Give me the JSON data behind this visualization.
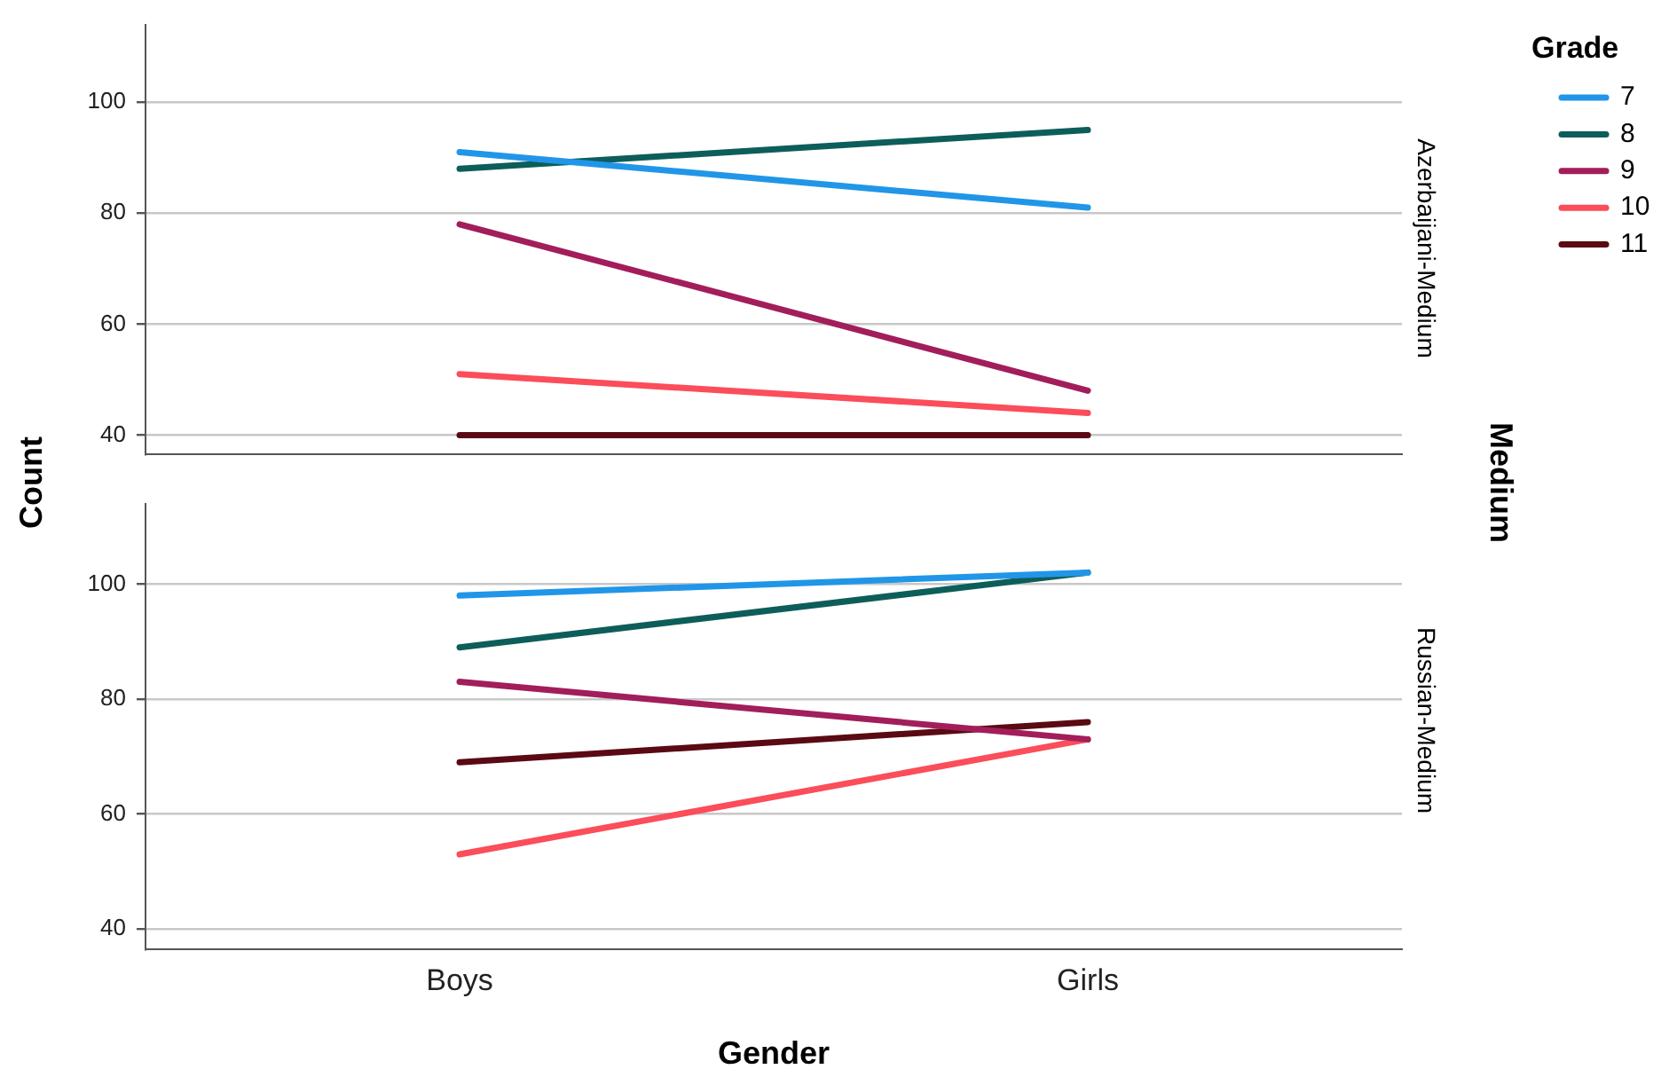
{
  "chart_data": [
    {
      "type": "line",
      "title": "Azerbaijani-Medium",
      "ylabel": "Count",
      "legend_title": "Grade",
      "legend": "top right",
      "grid": "y",
      "tick_labels": "y",
      "annotations": [
        "Medium"
      ],
      "categories": [
        null,
        null
      ],
      "ylim": [
        36.5,
        114
      ],
      "yticks": [
        40,
        60,
        80,
        100
      ],
      "series": [
        {
          "name": "7",
          "color": "#2196e8",
          "values": [
            91,
            81
          ]
        },
        {
          "name": "8",
          "color": "#0d5e5a",
          "values": [
            88,
            95
          ]
        },
        {
          "name": "9",
          "color": "#a21e5a",
          "values": [
            78,
            48
          ]
        },
        {
          "name": "10",
          "color": "#fb4d5a",
          "values": [
            51,
            44
          ]
        },
        {
          "name": "11",
          "color": "#5a0a12",
          "values": [
            40,
            40
          ]
        }
      ]
    },
    {
      "type": "line",
      "title": "Russian-Medium",
      "xlabel": "Gender",
      "grid": "y",
      "categories": [
        "Boys",
        "Girls"
      ],
      "ylim": [
        36.5,
        114
      ],
      "yticks": [
        40,
        60,
        80,
        100
      ],
      "series": [
        {
          "color": "#2196e8",
          "values": [
            98,
            102
          ]
        },
        {
          "color": "#0d5e5a",
          "values": [
            89,
            102
          ]
        },
        {
          "color": "#a21e5a",
          "values": [
            83,
            73
          ]
        },
        {
          "color": "#fb4d5a",
          "values": [
            53,
            73
          ]
        },
        {
          "color": "#5a0a12",
          "values": [
            69,
            76
          ]
        }
      ]
    }
  ]
}
